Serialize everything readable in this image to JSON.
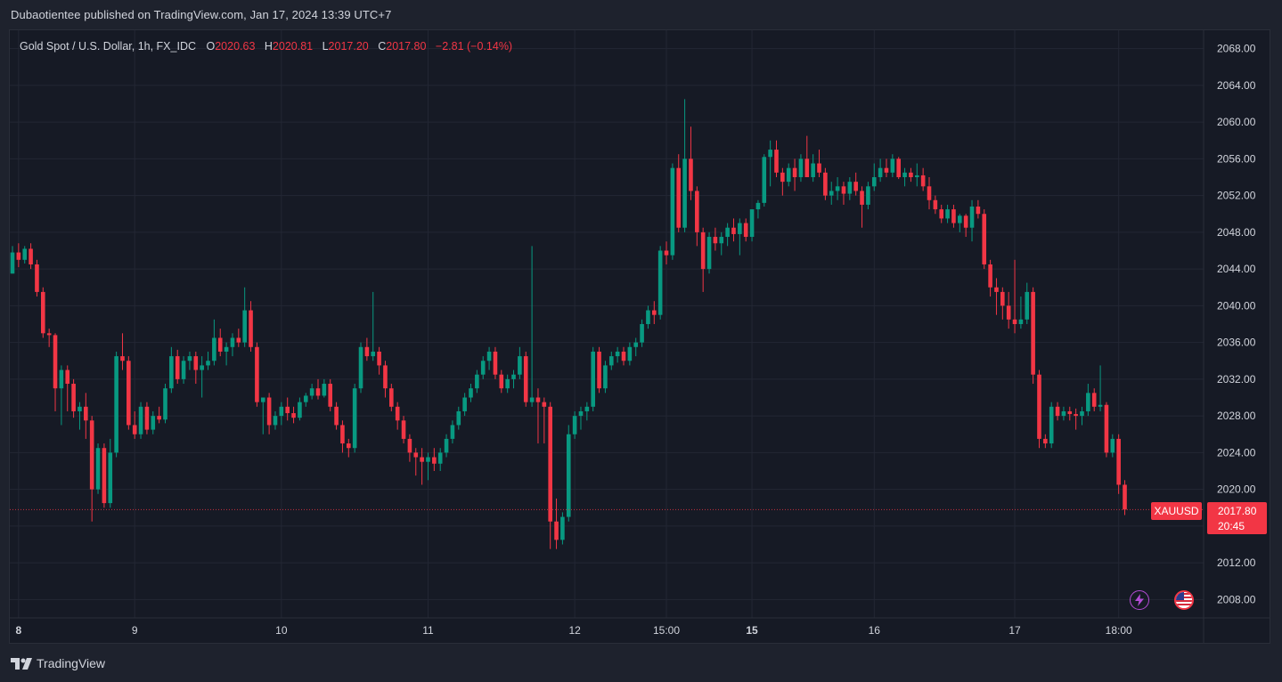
{
  "header": {
    "publisher_text": "Dubaotientee published on TradingView.com, Jan 17, 2024 13:39 UTC+7"
  },
  "legend": {
    "symbol": "Gold Spot / U.S. Dollar, 1h, FX_IDC",
    "open_label": "O",
    "open": "2020.63",
    "high_label": "H",
    "high": "2020.81",
    "low_label": "L",
    "low": "2017.20",
    "close_label": "C",
    "close": "2017.80",
    "change": "−2.81 (−0.14%)"
  },
  "price_tag": {
    "ticker": "XAUUSD",
    "price": "2017.80",
    "countdown": "20:45"
  },
  "footer": {
    "brand": "TradingView"
  },
  "icons": [
    "lightning-icon",
    "us-flag-icon",
    "tradingview-logo-icon"
  ],
  "colors": {
    "up": "#089981",
    "down": "#f23645",
    "background": "#161a25",
    "grid": "#232734"
  },
  "chart_data": {
    "type": "candlestick",
    "symbol": "XAUUSD",
    "interval": "1h",
    "ylim": [
      2006,
      2070
    ],
    "y_ticks": [
      "2068.00",
      "2064.00",
      "2060.00",
      "2056.00",
      "2052.00",
      "2048.00",
      "2044.00",
      "2040.00",
      "2036.00",
      "2032.00",
      "2028.00",
      "2024.00",
      "2020.00",
      "2016.00",
      "2012.00",
      "2008.00"
    ],
    "x_ticks": [
      {
        "label": "8",
        "idx": 1,
        "bold": true
      },
      {
        "label": "9",
        "idx": 20,
        "bold": false
      },
      {
        "label": "10",
        "idx": 44,
        "bold": false
      },
      {
        "label": "11",
        "idx": 68,
        "bold": false
      },
      {
        "label": "12",
        "idx": 92,
        "bold": false
      },
      {
        "label": "15:00",
        "idx": 107,
        "bold": false
      },
      {
        "label": "15",
        "idx": 121,
        "bold": true
      },
      {
        "label": "16",
        "idx": 141,
        "bold": false
      },
      {
        "label": "17",
        "idx": 164,
        "bold": false
      },
      {
        "label": "18:00",
        "idx": 181,
        "bold": false
      }
    ],
    "last_price": 2017.8,
    "candles": [
      [
        2043.5,
        2046.5,
        2043.5,
        2045.8
      ],
      [
        2045.8,
        2046.8,
        2044.2,
        2045.0
      ],
      [
        2045.0,
        2046.5,
        2044.6,
        2046.2
      ],
      [
        2046.2,
        2046.8,
        2044.0,
        2044.5
      ],
      [
        2044.5,
        2045.0,
        2041.0,
        2041.5
      ],
      [
        2041.5,
        2042.0,
        2036.5,
        2037.0
      ],
      [
        2037.0,
        2037.5,
        2035.5,
        2036.8
      ],
      [
        2036.8,
        2037.0,
        2028.5,
        2031.0
      ],
      [
        2031.0,
        2033.5,
        2027.0,
        2033.0
      ],
      [
        2033.0,
        2033.5,
        2028.5,
        2031.5
      ],
      [
        2031.5,
        2032.0,
        2027.8,
        2028.5
      ],
      [
        2028.5,
        2029.5,
        2026.5,
        2029.0
      ],
      [
        2029.0,
        2030.5,
        2025.5,
        2027.5
      ],
      [
        2027.5,
        2028.0,
        2016.5,
        2020.0
      ],
      [
        2020.0,
        2025.0,
        2019.5,
        2024.5
      ],
      [
        2024.5,
        2025.0,
        2018.0,
        2018.5
      ],
      [
        2018.5,
        2025.5,
        2018.0,
        2024.0
      ],
      [
        2024.0,
        2035.0,
        2023.5,
        2034.5
      ],
      [
        2034.5,
        2037.0,
        2033.0,
        2034.0
      ],
      [
        2034.0,
        2034.5,
        2026.5,
        2027.0
      ],
      [
        2027.0,
        2028.5,
        2025.5,
        2026.0
      ],
      [
        2026.0,
        2029.5,
        2025.5,
        2029.0
      ],
      [
        2029.0,
        2029.5,
        2026.0,
        2026.5
      ],
      [
        2026.5,
        2028.5,
        2026.0,
        2028.0
      ],
      [
        2028.0,
        2029.0,
        2027.2,
        2027.6
      ],
      [
        2027.6,
        2031.5,
        2027.2,
        2031.0
      ],
      [
        2031.0,
        2035.5,
        2030.5,
        2034.5
      ],
      [
        2034.5,
        2035.2,
        2031.5,
        2032.0
      ],
      [
        2032.0,
        2034.5,
        2031.5,
        2034.0
      ],
      [
        2034.0,
        2035.0,
        2033.0,
        2034.5
      ],
      [
        2034.5,
        2035.0,
        2031.5,
        2033.0
      ],
      [
        2033.0,
        2034.5,
        2030.0,
        2033.5
      ],
      [
        2033.5,
        2035.0,
        2033.0,
        2034.0
      ],
      [
        2034.0,
        2038.5,
        2033.5,
        2036.5
      ],
      [
        2036.5,
        2037.5,
        2034.5,
        2035.0
      ],
      [
        2035.0,
        2036.0,
        2033.5,
        2035.5
      ],
      [
        2035.5,
        2037.0,
        2034.5,
        2036.5
      ],
      [
        2036.5,
        2037.5,
        2035.5,
        2036.0
      ],
      [
        2036.0,
        2042.0,
        2035.5,
        2039.5
      ],
      [
        2039.5,
        2040.5,
        2035.0,
        2035.5
      ],
      [
        2035.5,
        2036.0,
        2029.0,
        2029.5
      ],
      [
        2029.5,
        2030.0,
        2026.0,
        2030.0
      ],
      [
        2030.0,
        2030.5,
        2026.0,
        2027.0
      ],
      [
        2027.0,
        2028.5,
        2026.5,
        2028.0
      ],
      [
        2028.0,
        2029.5,
        2027.0,
        2029.0
      ],
      [
        2029.0,
        2030.0,
        2027.5,
        2028.3
      ],
      [
        2028.3,
        2029.0,
        2027.2,
        2027.8
      ],
      [
        2027.8,
        2030.0,
        2027.5,
        2029.5
      ],
      [
        2029.5,
        2030.5,
        2029.0,
        2030.2
      ],
      [
        2030.2,
        2031.5,
        2029.8,
        2031.0
      ],
      [
        2031.0,
        2032.0,
        2029.8,
        2030.2
      ],
      [
        2030.2,
        2032.0,
        2030.0,
        2031.5
      ],
      [
        2031.5,
        2032.0,
        2028.5,
        2029.0
      ],
      [
        2029.0,
        2029.5,
        2026.5,
        2027.0
      ],
      [
        2027.0,
        2027.5,
        2024.0,
        2025.0
      ],
      [
        2025.0,
        2025.5,
        2023.5,
        2024.5
      ],
      [
        2024.5,
        2031.5,
        2024.0,
        2031.0
      ],
      [
        2031.0,
        2036.0,
        2030.5,
        2035.5
      ],
      [
        2035.5,
        2036.5,
        2034.0,
        2034.5
      ],
      [
        2034.5,
        2041.5,
        2034.0,
        2035.0
      ],
      [
        2035.0,
        2035.5,
        2032.5,
        2033.5
      ],
      [
        2033.5,
        2034.0,
        2030.0,
        2031.0
      ],
      [
        2031.0,
        2031.5,
        2028.5,
        2029.0
      ],
      [
        2029.0,
        2029.5,
        2026.5,
        2027.5
      ],
      [
        2027.5,
        2028.0,
        2025.0,
        2025.5
      ],
      [
        2025.5,
        2026.0,
        2023.0,
        2024.0
      ],
      [
        2024.0,
        2024.5,
        2021.5,
        2023.5
      ],
      [
        2023.5,
        2024.5,
        2020.5,
        2023.0
      ],
      [
        2023.0,
        2024.0,
        2021.0,
        2023.5
      ],
      [
        2023.5,
        2024.5,
        2022.0,
        2022.8
      ],
      [
        2022.8,
        2024.5,
        2022.0,
        2024.0
      ],
      [
        2024.0,
        2026.0,
        2023.5,
        2025.5
      ],
      [
        2025.5,
        2027.5,
        2025.0,
        2027.0
      ],
      [
        2027.0,
        2029.0,
        2026.5,
        2028.5
      ],
      [
        2028.5,
        2030.5,
        2028.0,
        2030.0
      ],
      [
        2030.0,
        2031.5,
        2029.5,
        2031.0
      ],
      [
        2031.0,
        2033.0,
        2030.5,
        2032.5
      ],
      [
        2032.5,
        2034.5,
        2032.0,
        2034.0
      ],
      [
        2034.0,
        2035.5,
        2033.0,
        2035.0
      ],
      [
        2035.0,
        2035.5,
        2032.0,
        2032.5
      ],
      [
        2032.5,
        2033.0,
        2030.5,
        2031.0
      ],
      [
        2031.0,
        2032.5,
        2030.5,
        2032.0
      ],
      [
        2032.0,
        2033.0,
        2031.0,
        2032.5
      ],
      [
        2032.5,
        2035.5,
        2032.0,
        2034.5
      ],
      [
        2034.5,
        2035.0,
        2029.0,
        2029.5
      ],
      [
        2029.5,
        2046.5,
        2029.0,
        2030.0
      ],
      [
        2030.0,
        2031.0,
        2025.0,
        2029.5
      ],
      [
        2029.5,
        2030.0,
        2025.0,
        2029.0
      ],
      [
        2029.0,
        2029.5,
        2013.5,
        2016.5
      ],
      [
        2016.5,
        2019.0,
        2013.5,
        2014.5
      ],
      [
        2014.5,
        2017.5,
        2014.0,
        2017.0
      ],
      [
        2017.0,
        2027.0,
        2016.5,
        2026.0
      ],
      [
        2026.0,
        2028.5,
        2025.5,
        2028.0
      ],
      [
        2028.0,
        2029.0,
        2026.5,
        2028.5
      ],
      [
        2028.5,
        2029.5,
        2027.5,
        2029.0
      ],
      [
        2029.0,
        2035.5,
        2028.5,
        2035.0
      ],
      [
        2035.0,
        2035.5,
        2030.5,
        2031.0
      ],
      [
        2031.0,
        2034.0,
        2030.5,
        2033.5
      ],
      [
        2033.5,
        2035.0,
        2033.0,
        2034.5
      ],
      [
        2034.5,
        2035.5,
        2033.8,
        2035.0
      ],
      [
        2035.0,
        2035.5,
        2033.5,
        2034.0
      ],
      [
        2034.0,
        2036.0,
        2033.5,
        2035.5
      ],
      [
        2035.5,
        2036.5,
        2034.5,
        2036.0
      ],
      [
        2036.0,
        2038.5,
        2035.5,
        2038.0
      ],
      [
        2038.0,
        2040.0,
        2037.5,
        2039.5
      ],
      [
        2039.5,
        2040.5,
        2038.0,
        2039.0
      ],
      [
        2039.0,
        2046.5,
        2038.5,
        2046.0
      ],
      [
        2046.0,
        2047.0,
        2044.5,
        2045.5
      ],
      [
        2045.5,
        2055.5,
        2045.0,
        2055.0
      ],
      [
        2055.0,
        2056.5,
        2048.0,
        2048.5
      ],
      [
        2048.5,
        2062.5,
        2048.0,
        2056.0
      ],
      [
        2056.0,
        2059.5,
        2051.5,
        2052.5
      ],
      [
        2052.5,
        2053.0,
        2046.5,
        2048.0
      ],
      [
        2048.0,
        2048.5,
        2041.5,
        2044.0
      ],
      [
        2044.0,
        2048.0,
        2043.5,
        2047.5
      ],
      [
        2047.5,
        2048.5,
        2046.0,
        2046.8
      ],
      [
        2046.8,
        2048.0,
        2045.5,
        2047.5
      ],
      [
        2047.5,
        2049.0,
        2046.5,
        2048.5
      ],
      [
        2048.5,
        2049.5,
        2047.0,
        2047.8
      ],
      [
        2047.8,
        2049.5,
        2045.5,
        2049.0
      ],
      [
        2049.0,
        2049.5,
        2047.0,
        2047.5
      ],
      [
        2047.5,
        2050.0,
        2047.0,
        2050.5
      ],
      [
        2050.5,
        2051.5,
        2049.5,
        2051.2
      ],
      [
        2051.2,
        2056.5,
        2050.8,
        2056.2
      ],
      [
        2056.2,
        2058.0,
        2053.0,
        2057.0
      ],
      [
        2057.0,
        2058.0,
        2054.0,
        2054.5
      ],
      [
        2054.5,
        2055.0,
        2052.0,
        2053.5
      ],
      [
        2053.5,
        2055.5,
        2053.0,
        2055.0
      ],
      [
        2055.0,
        2056.0,
        2052.5,
        2054.0
      ],
      [
        2054.0,
        2056.5,
        2053.5,
        2056.0
      ],
      [
        2056.0,
        2058.5,
        2054.5,
        2054.0
      ],
      [
        2054.0,
        2056.5,
        2053.5,
        2055.5
      ],
      [
        2055.5,
        2057.0,
        2054.0,
        2054.5
      ],
      [
        2054.5,
        2055.0,
        2051.5,
        2052.0
      ],
      [
        2052.0,
        2053.5,
        2051.0,
        2052.5
      ],
      [
        2052.5,
        2054.0,
        2051.5,
        2053.0
      ],
      [
        2053.0,
        2053.5,
        2051.0,
        2052.2
      ],
      [
        2052.2,
        2054.0,
        2051.5,
        2053.5
      ],
      [
        2053.5,
        2054.5,
        2052.0,
        2052.5
      ],
      [
        2052.5,
        2053.0,
        2048.5,
        2051.0
      ],
      [
        2051.0,
        2053.5,
        2050.5,
        2053.0
      ],
      [
        2053.0,
        2055.5,
        2052.5,
        2054.0
      ],
      [
        2054.0,
        2056.0,
        2053.5,
        2055.0
      ],
      [
        2055.0,
        2056.0,
        2054.0,
        2054.5
      ],
      [
        2054.5,
        2056.5,
        2054.0,
        2056.0
      ],
      [
        2056.0,
        2056.2,
        2053.8,
        2054.0
      ],
      [
        2054.0,
        2055.0,
        2053.0,
        2054.5
      ],
      [
        2054.5,
        2055.0,
        2053.5,
        2054.0
      ],
      [
        2054.0,
        2055.5,
        2053.0,
        2054.2
      ],
      [
        2054.2,
        2055.0,
        2052.5,
        2053.0
      ],
      [
        2053.0,
        2054.0,
        2050.5,
        2051.5
      ],
      [
        2051.5,
        2052.0,
        2050.0,
        2050.5
      ],
      [
        2050.5,
        2051.0,
        2049.0,
        2049.5
      ],
      [
        2049.5,
        2051.0,
        2049.0,
        2050.5
      ],
      [
        2050.5,
        2051.0,
        2048.5,
        2049.0
      ],
      [
        2049.0,
        2050.0,
        2048.0,
        2049.8
      ],
      [
        2049.8,
        2050.0,
        2047.5,
        2048.5
      ],
      [
        2048.5,
        2051.5,
        2047.0,
        2050.8
      ],
      [
        2050.8,
        2051.5,
        2049.5,
        2050.0
      ],
      [
        2050.0,
        2050.5,
        2044.0,
        2044.5
      ],
      [
        2044.5,
        2045.0,
        2041.0,
        2042.0
      ],
      [
        2042.0,
        2043.0,
        2039.0,
        2041.5
      ],
      [
        2041.5,
        2042.0,
        2038.5,
        2040.0
      ],
      [
        2040.0,
        2041.5,
        2037.5,
        2038.5
      ],
      [
        2038.5,
        2045.0,
        2037.0,
        2038.0
      ],
      [
        2038.0,
        2041.0,
        2037.5,
        2038.5
      ],
      [
        2038.5,
        2042.5,
        2038.0,
        2041.5
      ],
      [
        2041.5,
        2042.0,
        2031.5,
        2032.5
      ],
      [
        2032.5,
        2033.0,
        2024.5,
        2025.5
      ],
      [
        2025.5,
        2026.0,
        2024.5,
        2025.0
      ],
      [
        2025.0,
        2029.5,
        2024.5,
        2029.0
      ],
      [
        2029.0,
        2029.5,
        2027.5,
        2028.0
      ],
      [
        2028.0,
        2029.0,
        2027.5,
        2028.5
      ],
      [
        2028.5,
        2029.0,
        2027.5,
        2028.2
      ],
      [
        2028.2,
        2028.8,
        2026.5,
        2028.0
      ],
      [
        2028.0,
        2029.0,
        2027.0,
        2028.5
      ],
      [
        2028.5,
        2031.5,
        2028.0,
        2030.5
      ],
      [
        2030.5,
        2031.0,
        2028.5,
        2029.0
      ],
      [
        2029.0,
        2033.5,
        2028.5,
        2029.2
      ],
      [
        2029.2,
        2029.5,
        2023.5,
        2024.0
      ],
      [
        2024.0,
        2026.0,
        2023.5,
        2025.5
      ],
      [
        2025.5,
        2026.0,
        2019.5,
        2020.5
      ],
      [
        2020.5,
        2021.0,
        2017.2,
        2017.8
      ]
    ]
  }
}
